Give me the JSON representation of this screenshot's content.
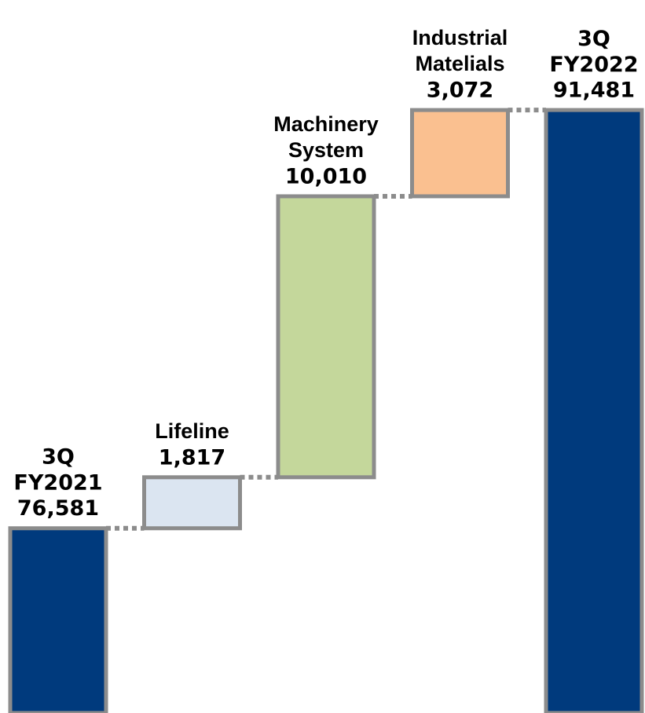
{
  "chart_data": {
    "type": "waterfall",
    "categories": [
      "3Q FY2021",
      "Lifeline",
      "Machinery System",
      "Industrial Matelials",
      "3Q FY2022"
    ],
    "values": [
      76581,
      1817,
      10010,
      3072,
      91481
    ],
    "value_labels": [
      "76,581",
      "1,817",
      "10,010",
      "3,072",
      "91,481"
    ],
    "colors": [
      "#003a7d",
      "#dbe5f1",
      "#c4d79b",
      "#fac090",
      "#003a7d"
    ],
    "ylim": [
      70000,
      95400
    ]
  }
}
